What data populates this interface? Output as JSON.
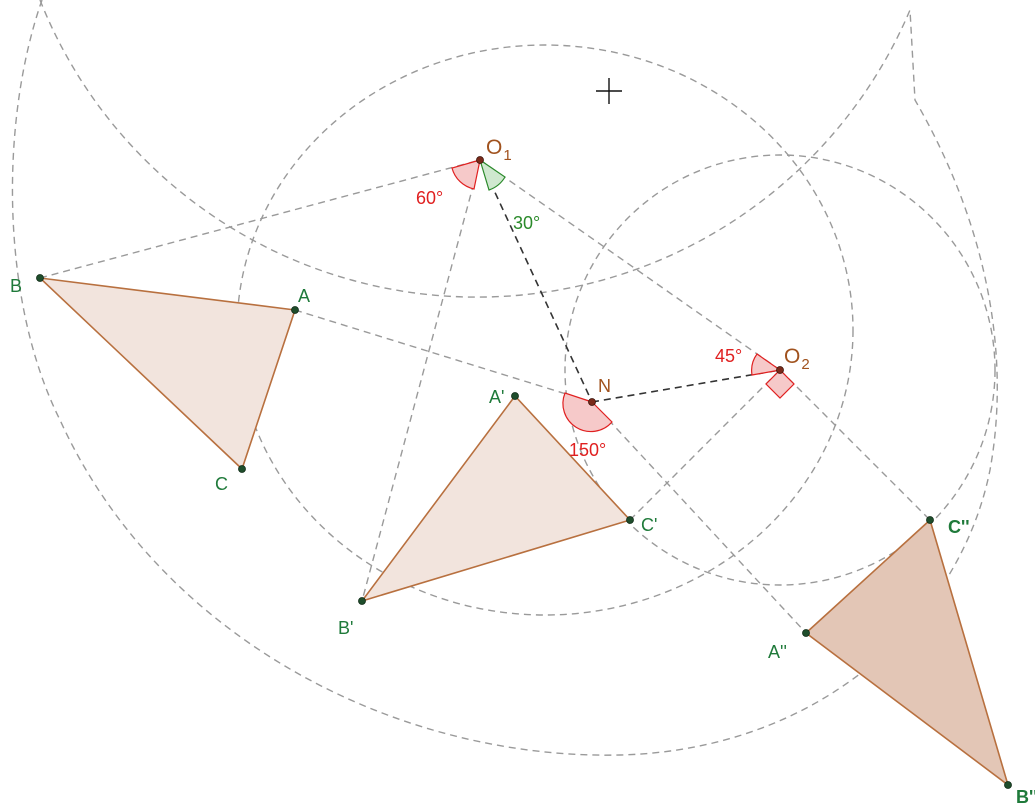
{
  "colors": {
    "point_label": "#1f7a3a",
    "center_label": "#a0521e",
    "angle_red": "#e02020",
    "angle_green": "#2a8a2a",
    "triangle_fill": "#f2e4dd",
    "triangle_fill_dark": "#e3c6b6",
    "triangle_stroke": "#b8703f",
    "construction": "#9a9a9a"
  },
  "points": {
    "B": "B",
    "A": "A",
    "C": "C",
    "A_prime": "A'",
    "B_prime": "B'",
    "C_prime": "C'",
    "A_dprime": "A''",
    "B_dprime": "B''",
    "C_dprime": "C''",
    "N": "N"
  },
  "centers": {
    "O1": {
      "letter": "O",
      "sub": "1"
    },
    "O2": {
      "letter": "O",
      "sub": "2"
    }
  },
  "angles": {
    "at_O1_red": "60°",
    "at_O1_green": "30°",
    "at_O2": "45°",
    "at_N": "150°"
  },
  "icons": {
    "cursor": "crosshair-icon"
  }
}
